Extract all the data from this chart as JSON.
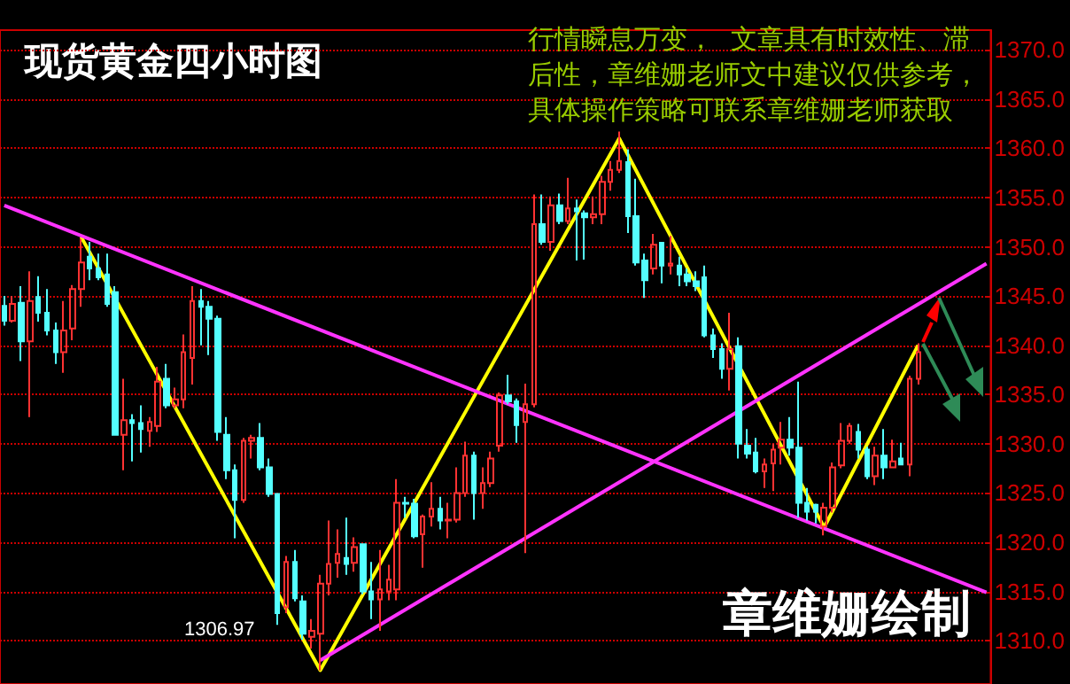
{
  "chart_data": {
    "type": "candlestick",
    "title": "现货黄金四小时图",
    "categories": [
      null,
      null,
      null,
      null,
      null,
      null,
      null,
      null,
      null,
      null,
      null,
      null,
      null,
      null,
      null,
      null,
      null,
      null,
      null,
      null,
      null,
      null,
      null,
      null,
      null,
      null,
      null,
      null,
      null,
      null,
      null,
      null,
      null,
      null,
      null,
      null,
      null,
      null,
      null,
      null,
      null,
      null,
      null,
      null,
      null,
      null,
      null,
      null,
      null,
      null,
      null,
      null,
      null,
      null,
      null,
      null,
      null,
      null,
      null,
      null,
      null,
      null,
      null,
      null,
      null,
      null,
      null,
      null,
      null,
      null,
      null,
      null,
      null,
      null,
      null,
      null,
      null,
      null,
      null,
      null,
      null,
      null,
      null,
      null,
      null,
      null,
      null,
      null,
      null,
      null,
      null,
      null,
      null,
      null,
      null,
      null,
      null,
      null,
      null,
      null,
      null,
      null,
      null,
      null,
      null,
      null,
      null,
      null,
      null,
      null,
      null,
      null,
      null,
      null,
      null,
      null
    ],
    "ohlc": [
      [
        1344,
        1345,
        1342,
        1342.5
      ],
      [
        1342.5,
        1345,
        1342.3,
        1344.2
      ],
      [
        1344.3,
        1346,
        1338.4,
        1340.4
      ],
      [
        1340.4,
        1347.5,
        1332.7,
        1344.5
      ],
      [
        1344.9,
        1347,
        1342.4,
        1343.3
      ],
      [
        1343.3,
        1345.7,
        1341,
        1341.5
      ],
      [
        1341.5,
        1342.3,
        1338.1,
        1339.3
      ],
      [
        1339.3,
        1344.5,
        1337.2,
        1341.5
      ],
      [
        1341.7,
        1346.1,
        1340.5,
        1345.7
      ],
      [
        1345.7,
        1350.8,
        1343.9,
        1348.4
      ],
      [
        1349,
        1350.5,
        1346.6,
        1347.8
      ],
      [
        1347.8,
        1349.3,
        1346.6,
        1346.9
      ],
      [
        1347.2,
        1349.3,
        1343.9,
        1344.2
      ],
      [
        1345.4,
        1346,
        1330.9,
        1330.9
      ],
      [
        1330.9,
        1336.6,
        1327.3,
        1332.4
      ],
      [
        1332.4,
        1333,
        1328.2,
        1332.1
      ],
      [
        1332.1,
        1333.9,
        1329.1,
        1331.5
      ],
      [
        1331.3,
        1332.7,
        1329.7,
        1332.2
      ],
      [
        1331.8,
        1337.8,
        1331.2,
        1336.3
      ],
      [
        1336.6,
        1338.1,
        1333.6,
        1333.9
      ],
      [
        1333.9,
        1335.7,
        1333.6,
        1334.5
      ],
      [
        1334.5,
        1341.1,
        1333.6,
        1339.3
      ],
      [
        1338.7,
        1346,
        1336,
        1344.5
      ],
      [
        1344.5,
        1345.7,
        1340,
        1343.9
      ],
      [
        1343.9,
        1344.5,
        1339,
        1342.7
      ],
      [
        1342.7,
        1343,
        1330.3,
        1331.2
      ],
      [
        1330.9,
        1332.7,
        1326.4,
        1327.3
      ],
      [
        1327.3,
        1327.9,
        1320.4,
        1324.3
      ],
      [
        1324.3,
        1330.6,
        1324,
        1330.3
      ],
      [
        1330.3,
        1330.9,
        1328.5,
        1330.6
      ],
      [
        1330.6,
        1332.1,
        1327.3,
        1327.6
      ],
      [
        1327.6,
        1328.5,
        1324.6,
        1324.9
      ],
      [
        1324.9,
        1325,
        1311.6,
        1312.8
      ],
      [
        1313.4,
        1318.6,
        1312.8,
        1318
      ],
      [
        1318,
        1319.2,
        1314,
        1314.3
      ],
      [
        1314,
        1314.6,
        1310.1,
        1310.7
      ],
      [
        1310.4,
        1312.2,
        1309.2,
        1311
      ],
      [
        1310.7,
        1316.7,
        1306.97,
        1315.8
      ],
      [
        1315.8,
        1322.2,
        1314.6,
        1317.8
      ],
      [
        1317.9,
        1321.3,
        1316.4,
        1318.8
      ],
      [
        1318.4,
        1322.5,
        1316.7,
        1317.8
      ],
      [
        1317.9,
        1320.5,
        1317,
        1319.5
      ],
      [
        1319.8,
        1319.8,
        1314.7,
        1315
      ],
      [
        1315,
        1318,
        1312.2,
        1314.2
      ],
      [
        1314.2,
        1319.2,
        1311,
        1315.2
      ],
      [
        1315,
        1317.7,
        1314.1,
        1316.2
      ],
      [
        1315.2,
        1326.4,
        1314.1,
        1324
      ],
      [
        1324,
        1324.6,
        1322.5,
        1323.9
      ],
      [
        1323.9,
        1324.4,
        1320.4,
        1320.6
      ],
      [
        1320.8,
        1322.8,
        1317.4,
        1322.6
      ],
      [
        1322.6,
        1326.1,
        1321.6,
        1323.4
      ],
      [
        1323.4,
        1324.6,
        1321.3,
        1322.2
      ],
      [
        1322.2,
        1324,
        1320.4,
        1322.3
      ],
      [
        1322.3,
        1327.6,
        1322,
        1325
      ],
      [
        1325,
        1330.2,
        1324.6,
        1328.8
      ],
      [
        1328.8,
        1329.2,
        1322.3,
        1325
      ],
      [
        1325,
        1327.6,
        1323.4,
        1326
      ],
      [
        1326,
        1329.2,
        1325.6,
        1328.5
      ],
      [
        1329.8,
        1335.2,
        1329.2,
        1334.9
      ],
      [
        1334.9,
        1337,
        1334,
        1334.3
      ],
      [
        1334.3,
        1334.6,
        1330.1,
        1331.9
      ],
      [
        1332.2,
        1336.1,
        1318.9,
        1334
      ],
      [
        1334,
        1355.3,
        1333.7,
        1352.3
      ],
      [
        1352.3,
        1355.3,
        1350.2,
        1350.5
      ],
      [
        1350.5,
        1355.1,
        1349.6,
        1354.2
      ],
      [
        1354.2,
        1355.4,
        1352.3,
        1352.6
      ],
      [
        1352.6,
        1357,
        1352.3,
        1353.9
      ],
      [
        1353.9,
        1354.8,
        1348.6,
        1353.6
      ],
      [
        1353.4,
        1353.7,
        1348.7,
        1353
      ],
      [
        1353,
        1355.1,
        1352.3,
        1353.3
      ],
      [
        1353.3,
        1357.2,
        1352.3,
        1356.6
      ],
      [
        1356.6,
        1358.7,
        1355.7,
        1357.8
      ],
      [
        1357.8,
        1361.7,
        1357.5,
        1358.7
      ],
      [
        1358.6,
        1359.9,
        1351.4,
        1353.1
      ],
      [
        1353.1,
        1356.9,
        1348.1,
        1348.4
      ],
      [
        1348.6,
        1349.3,
        1344.8,
        1346.6
      ],
      [
        1347.8,
        1351.3,
        1347.2,
        1350.2
      ],
      [
        1350.4,
        1350.5,
        1346.3,
        1348.1
      ],
      [
        1348.1,
        1351.1,
        1347.2,
        1348.3
      ],
      [
        1348.1,
        1349,
        1346,
        1347.2
      ],
      [
        1347.2,
        1347.8,
        1346,
        1346.5
      ],
      [
        1346.5,
        1347.5,
        1345.5,
        1346
      ],
      [
        1346.9,
        1348.1,
        1340.8,
        1341
      ],
      [
        1341,
        1341.7,
        1338.7,
        1339.6
      ],
      [
        1339.6,
        1340.2,
        1336.6,
        1337.6
      ],
      [
        1337.6,
        1343.3,
        1335.4,
        1339.6
      ],
      [
        1339.9,
        1340.8,
        1328.5,
        1330
      ],
      [
        1329.8,
        1331.5,
        1328.5,
        1329
      ],
      [
        1329.1,
        1330.6,
        1327,
        1327.2
      ],
      [
        1327.2,
        1328.5,
        1325.5,
        1327.9
      ],
      [
        1328,
        1330,
        1325.2,
        1329.4
      ],
      [
        1329.6,
        1332.2,
        1327.9,
        1330.4
      ],
      [
        1330.4,
        1332.7,
        1328.8,
        1329.6
      ],
      [
        1329.6,
        1336.3,
        1322.5,
        1324
      ],
      [
        1324,
        1325.5,
        1322.2,
        1323.1
      ],
      [
        1323.8,
        1323.9,
        1321.9,
        1323.1
      ],
      [
        1321.6,
        1324,
        1320.7,
        1323.5
      ],
      [
        1323.5,
        1328.1,
        1323,
        1327.6
      ],
      [
        1327.8,
        1332.1,
        1327.5,
        1330.3
      ],
      [
        1330.3,
        1332.1,
        1330,
        1331.8
      ],
      [
        1331.2,
        1332,
        1328.5,
        1329.4
      ],
      [
        1329.4,
        1329.7,
        1326.4,
        1326.7
      ],
      [
        1326.7,
        1329.7,
        1325.8,
        1328.8
      ],
      [
        1328.8,
        1331.5,
        1326.4,
        1327.6
      ],
      [
        1327.6,
        1330.4,
        1327.5,
        1328.2
      ],
      [
        1328.5,
        1330.1,
        1327.8,
        1327.9
      ],
      [
        1327.9,
        1336.9,
        1326.7,
        1336.6
      ],
      [
        1336.6,
        1340.2,
        1336,
        1339.3
      ],
      null,
      null,
      null,
      null,
      null,
      null,
      null,
      null
    ],
    "colors": [
      "#54ffff",
      "#ff3232",
      "#54ffff",
      "#ff3232",
      "#54ffff",
      "#54ffff",
      "#54ffff",
      "#ff3232",
      "#ff3232",
      "#ff3232",
      "#54ffff",
      "#54ffff",
      "#54ffff",
      "#54ffff",
      "#ff3232",
      "#54ffff",
      "#54ffff",
      "#ff3232",
      "#ff3232",
      "#54ffff",
      "#ff3232",
      "#ff3232",
      "#ff3232",
      "#54ffff",
      "#54ffff",
      "#54ffff",
      "#54ffff",
      "#54ffff",
      "#ff3232",
      "#ff3232",
      "#54ffff",
      "#54ffff",
      "#54ffff",
      "#ff3232",
      "#54ffff",
      "#54ffff",
      "#ff3232",
      "#ff3232",
      "#ff3232",
      "#ff3232",
      "#54ffff",
      "#ff3232",
      "#54ffff",
      "#54ffff",
      "#ff3232",
      "#ff3232",
      "#ff3232",
      "#54ffff",
      "#54ffff",
      "#ff3232",
      "#ff3232",
      "#54ffff",
      "#ff3232",
      "#ff3232",
      "#ff3232",
      "#54ffff",
      "#ff3232",
      "#ff3232",
      "#ff3232",
      "#54ffff",
      "#54ffff",
      "#ff3232",
      "#ff3232",
      "#54ffff",
      "#ff3232",
      "#54ffff",
      "#ff3232",
      "#54ffff",
      "#54ffff",
      "#ff3232",
      "#ff3232",
      "#ff3232",
      "#ff3232",
      "#54ffff",
      "#54ffff",
      "#54ffff",
      "#ff3232",
      "#54ffff",
      "#ff3232",
      "#54ffff",
      "#54ffff",
      "#54ffff",
      "#54ffff",
      "#54ffff",
      "#54ffff",
      "#ff3232",
      "#54ffff",
      "#54ffff",
      "#54ffff",
      "#ff3232",
      "#ff3232",
      "#ff3232",
      "#54ffff",
      "#54ffff",
      "#54ffff",
      "#54ffff",
      "#ff3232",
      "#ff3232",
      "#ff3232",
      "#ff3232",
      "#54ffff",
      "#54ffff",
      "#ff3232",
      "#54ffff",
      "#ff3232",
      "#54ffff",
      "#ff3232",
      "#ff3232",
      null,
      null,
      null,
      null,
      null,
      null,
      null,
      null
    ],
    "series": [
      {
        "type": "line",
        "color": "#ffff00",
        "values": [
          null,
          null,
          null,
          null,
          null,
          null,
          null,
          null,
          null,
          1351,
          null,
          null,
          null,
          null,
          null,
          null,
          null,
          null,
          null,
          null,
          null,
          null,
          null,
          null,
          null,
          null,
          null,
          null,
          null,
          null,
          null,
          null,
          null,
          null,
          null,
          null,
          null,
          1307,
          null,
          null,
          null,
          null,
          null,
          null,
          null,
          null,
          null,
          null,
          null,
          null,
          null,
          null,
          null,
          null,
          null,
          null,
          null,
          null,
          null,
          null,
          null,
          null,
          null,
          null,
          null,
          null,
          null,
          null,
          null,
          null,
          null,
          null,
          1361,
          null,
          null,
          null,
          null,
          null,
          null,
          null,
          null,
          null,
          null,
          null,
          null,
          null,
          null,
          null,
          null,
          null,
          null,
          null,
          null,
          null,
          null,
          null,
          1321.5,
          null,
          null,
          null,
          null,
          null,
          null,
          null,
          null,
          null,
          null,
          1340,
          null,
          null,
          null,
          null,
          null,
          null,
          null,
          null
        ]
      },
      {
        "type": "line",
        "color": "#ff33ff",
        "values": [
          1354.2,
          null,
          null,
          null,
          null,
          null,
          null,
          null,
          null,
          null,
          null,
          null,
          null,
          null,
          null,
          null,
          null,
          null,
          null,
          null,
          null,
          null,
          null,
          null,
          null,
          null,
          null,
          null,
          null,
          null,
          null,
          null,
          null,
          null,
          null,
          null,
          null,
          null,
          null,
          null,
          null,
          null,
          null,
          null,
          null,
          null,
          null,
          null,
          null,
          null,
          null,
          null,
          null,
          null,
          null,
          null,
          null,
          null,
          null,
          null,
          null,
          null,
          null,
          null,
          null,
          null,
          null,
          null,
          null,
          null,
          null,
          null,
          null,
          null,
          null,
          null,
          null,
          null,
          null,
          null,
          null,
          null,
          null,
          null,
          null,
          null,
          null,
          null,
          null,
          null,
          null,
          null,
          null,
          null,
          null,
          null,
          null,
          null,
          null,
          null,
          null,
          null,
          null,
          null,
          null,
          null,
          null,
          null,
          null,
          null,
          null,
          null,
          null,
          null,
          null,
          1314.9
        ]
      },
      {
        "type": "line",
        "color": "#ff33ff",
        "values": [
          null,
          null,
          null,
          null,
          null,
          null,
          null,
          null,
          null,
          null,
          null,
          null,
          null,
          null,
          null,
          null,
          null,
          null,
          null,
          null,
          null,
          null,
          null,
          null,
          null,
          null,
          null,
          null,
          null,
          null,
          null,
          null,
          null,
          null,
          null,
          null,
          null,
          1308,
          null,
          null,
          null,
          null,
          null,
          null,
          null,
          null,
          null,
          null,
          null,
          null,
          null,
          null,
          null,
          null,
          null,
          null,
          null,
          null,
          null,
          null,
          null,
          null,
          null,
          null,
          null,
          null,
          null,
          null,
          null,
          null,
          null,
          null,
          null,
          null,
          null,
          null,
          null,
          null,
          null,
          null,
          null,
          null,
          null,
          null,
          null,
          null,
          null,
          null,
          null,
          null,
          null,
          null,
          null,
          null,
          null,
          null,
          null,
          null,
          null,
          null,
          null,
          null,
          null,
          null,
          null,
          null,
          null,
          null,
          null,
          null,
          null,
          null,
          null,
          null,
          null,
          1348.3
        ]
      }
    ],
    "ylim": [
      1305.6,
      1372
    ],
    "yticks": [
      {
        "value": 1310,
        "label": "1310.0"
      },
      {
        "value": 1315,
        "label": "1315.0"
      },
      {
        "value": 1320,
        "label": "1320.0"
      },
      {
        "value": 1325,
        "label": "1325.0"
      },
      {
        "value": 1330,
        "label": "1330.0"
      },
      {
        "value": 1335,
        "label": "1335.0"
      },
      {
        "value": 1340,
        "label": "1340.0"
      },
      {
        "value": 1345,
        "label": "1345.0"
      },
      {
        "value": 1350,
        "label": "1350.0"
      },
      {
        "value": 1355,
        "label": "1355.0"
      },
      {
        "value": 1360,
        "label": "1360.0"
      },
      {
        "value": 1365,
        "label": "1365.0"
      },
      {
        "value": 1370,
        "label": "1370.0"
      }
    ],
    "tick_labels": "y",
    "grid": "y",
    "line_style": "solid",
    "annotations": [
      "行情瞬息万变，  文章具有时效性、滞后性，章维姗老师文中建议仅供参考，具体操作策略可联系章维姗老师获取",
      "章维姗绘制",
      "1306.97"
    ]
  }
}
